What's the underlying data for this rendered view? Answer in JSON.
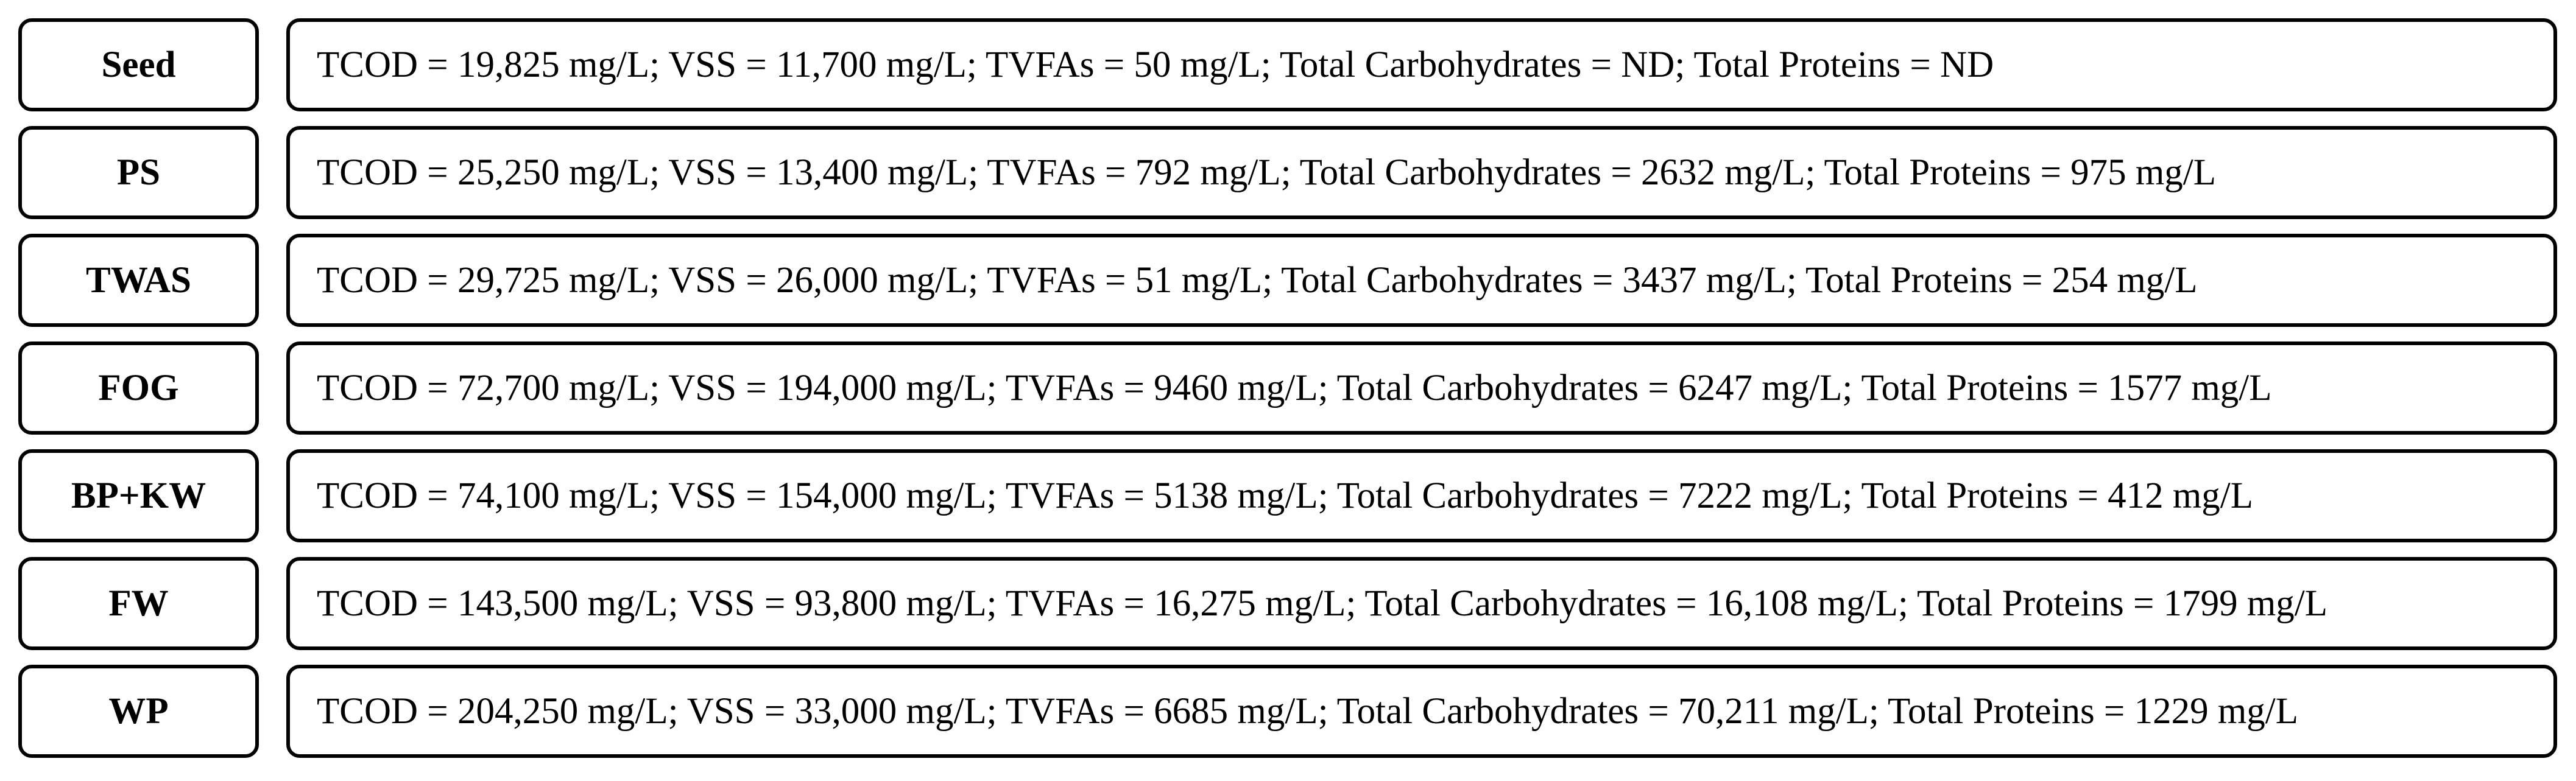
{
  "rows": [
    {
      "label": "Seed",
      "text": "TCOD = 19,825 mg/L; VSS = 11,700 mg/L; TVFAs = 50 mg/L; Total Carbohydrates = ND; Total Proteins = ND"
    },
    {
      "label": "PS",
      "text": "TCOD = 25,250 mg/L; VSS = 13,400 mg/L; TVFAs = 792 mg/L; Total Carbohydrates = 2632 mg/L; Total Proteins = 975 mg/L"
    },
    {
      "label": "TWAS",
      "text": "TCOD = 29,725 mg/L; VSS = 26,000 mg/L; TVFAs = 51 mg/L; Total Carbohydrates = 3437 mg/L; Total Proteins = 254 mg/L"
    },
    {
      "label": "FOG",
      "text": "TCOD = 72,700 mg/L; VSS = 194,000 mg/L; TVFAs = 9460 mg/L; Total Carbohydrates = 6247 mg/L; Total Proteins = 1577 mg/L"
    },
    {
      "label": "BP+KW",
      "text": "TCOD = 74,100 mg/L; VSS = 154,000 mg/L; TVFAs = 5138 mg/L; Total Carbohydrates = 7222 mg/L; Total Proteins = 412 mg/L"
    },
    {
      "label": "FW",
      "text": "TCOD = 143,500 mg/L; VSS = 93,800 mg/L; TVFAs = 16,275 mg/L; Total Carbohydrates = 16,108 mg/L; Total Proteins = 1799 mg/L"
    },
    {
      "label": "WP",
      "text": "TCOD = 204,250 mg/L; VSS = 33,000 mg/L; TVFAs = 6685 mg/L; Total Carbohydrates = 70,211 mg/L; Total Proteins = 1229 mg/L"
    }
  ]
}
